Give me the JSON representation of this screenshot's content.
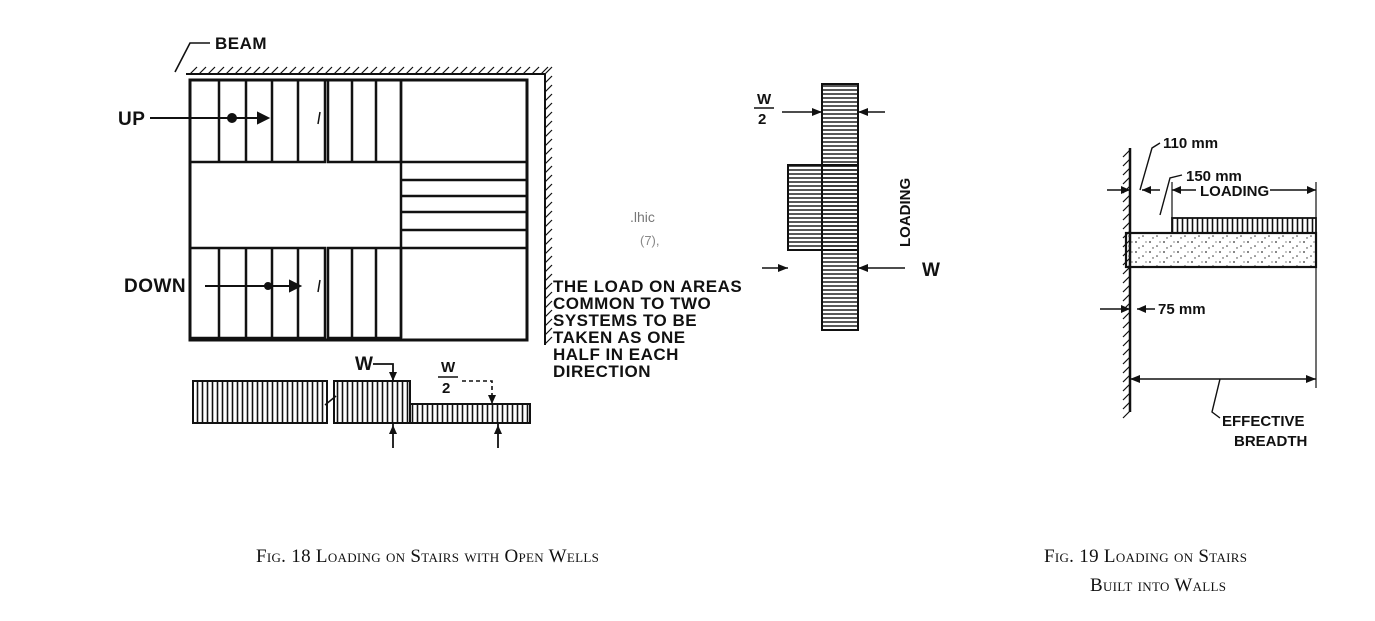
{
  "figure18": {
    "labels": {
      "beam": "BEAM",
      "up": "UP",
      "down": "DOWN",
      "w": "W",
      "w_num": "W",
      "w_den": "2",
      "note_lines": [
        "THE LOAD ON AREAS",
        "COMMON TO TWO",
        "SYSTEMS TO BE",
        "TAKEN AS ONE",
        "HALF IN EACH",
        "DIRECTION"
      ],
      "loading": "LOADING",
      "side_w": "W"
    },
    "caption": "Fig. 18 Loading on Stairs with Open Wells"
  },
  "figure19": {
    "labels": {
      "d110": "110 mm",
      "d150": "150 mm",
      "loading": "LOADING",
      "d75": "75 mm",
      "effective": "EFFECTIVE",
      "breadth": "BREADTH"
    },
    "caption_line1": "Fig. 19 Loading on Stairs",
    "caption_line2": "Built into Walls"
  }
}
